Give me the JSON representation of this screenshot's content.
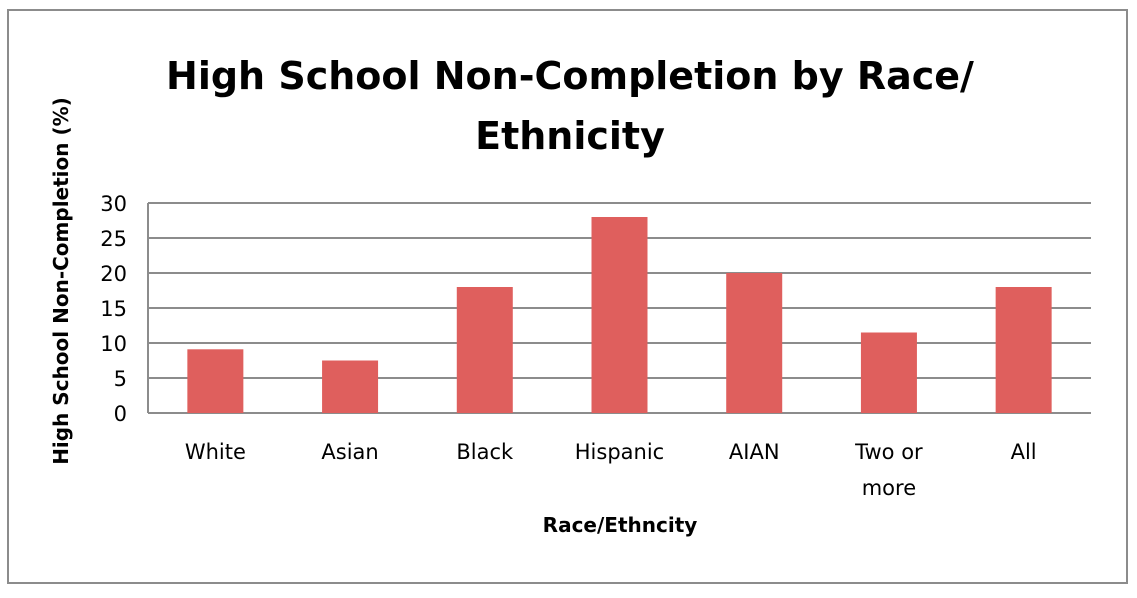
{
  "chart_data": {
    "type": "bar",
    "title": "High School Non-Completion by Race/ Ethnicity",
    "xlabel": "Race/Ethncity",
    "ylabel": "High School Non-Completion (%)",
    "categories": [
      "White",
      "Asian",
      "Black",
      "Hispanic",
      "AIAN",
      "Two or more",
      "All"
    ],
    "values": [
      9.1,
      7.5,
      18,
      28,
      20,
      11.5,
      18
    ],
    "ylim": [
      0,
      30
    ],
    "yticks": [
      0,
      5,
      10,
      15,
      20,
      25,
      30
    ],
    "grid": true,
    "legend": "none",
    "bar_color": "#df5f5d",
    "grid_color": "#8c8c8c"
  }
}
